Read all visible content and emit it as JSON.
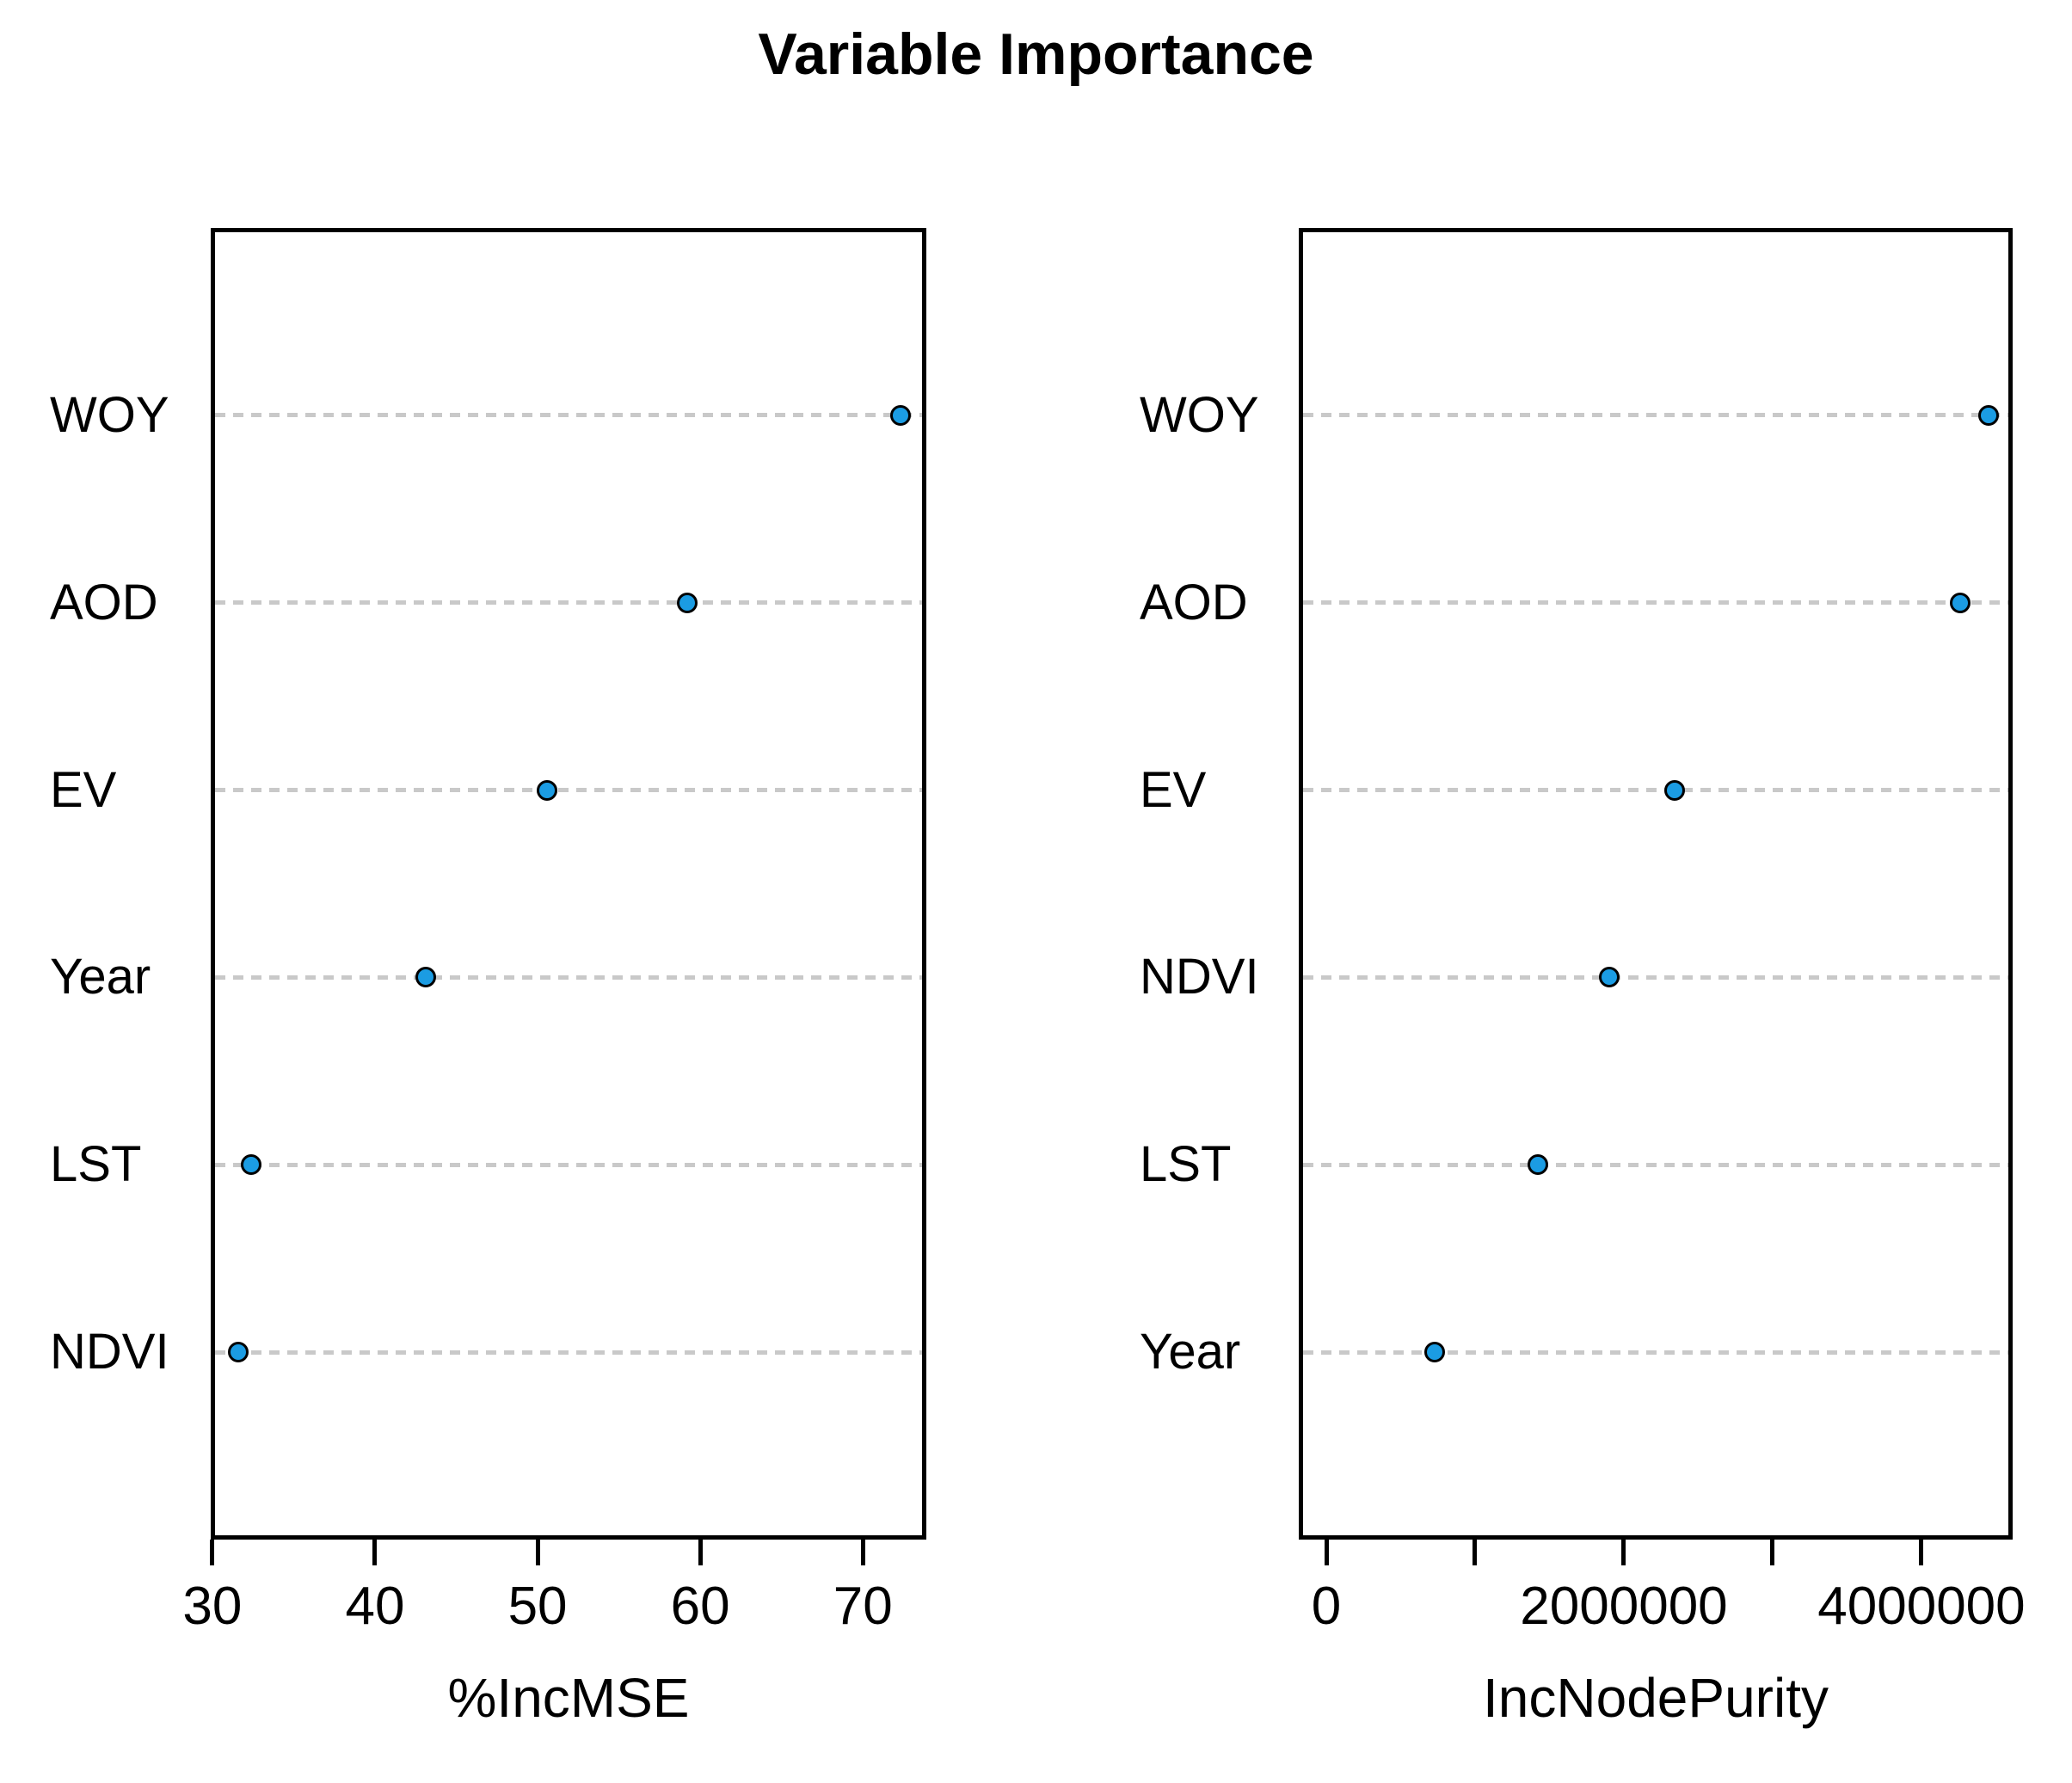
{
  "title": "Variable Importance",
  "colors": {
    "dot_fill": "#1b9ce3",
    "dot_stroke": "#000000",
    "gridline": "#c9c9c9",
    "box": "#000000",
    "text": "#000000",
    "background": "#ffffff"
  },
  "panels": [
    {
      "xlabel": "%IncMSE",
      "axis": {
        "min": 29.9,
        "max": 73.9,
        "ticks": [
          {
            "value": 30,
            "label": "30"
          },
          {
            "value": 40,
            "label": "40"
          },
          {
            "value": 50,
            "label": "50"
          },
          {
            "value": 60,
            "label": "60"
          },
          {
            "value": 70,
            "label": "70"
          }
        ]
      },
      "rows": [
        {
          "label": "WOY",
          "value": 72.3
        },
        {
          "label": "AOD",
          "value": 59.2
        },
        {
          "label": "EV",
          "value": 50.6
        },
        {
          "label": "Year",
          "value": 43.1
        },
        {
          "label": "LST",
          "value": 32.4
        },
        {
          "label": "NDVI",
          "value": 31.6
        }
      ]
    },
    {
      "xlabel": "IncNodePurity",
      "axis": {
        "min": -185000,
        "max": 4613000,
        "ticks": [
          {
            "value": 0,
            "label": "0"
          },
          {
            "value": 1000000,
            "label": ""
          },
          {
            "value": 2000000,
            "label": "2000000"
          },
          {
            "value": 3000000,
            "label": ""
          },
          {
            "value": 4000000,
            "label": "4000000"
          }
        ]
      },
      "rows": [
        {
          "label": "WOY",
          "value": 4450000
        },
        {
          "label": "AOD",
          "value": 4260000
        },
        {
          "label": "EV",
          "value": 2340000
        },
        {
          "label": "NDVI",
          "value": 1900000
        },
        {
          "label": "LST",
          "value": 1420000
        },
        {
          "label": "Year",
          "value": 730000
        }
      ]
    }
  ],
  "chart_data": [
    {
      "type": "scatter",
      "subtype": "dot-plot-horizontal",
      "title": "Variable Importance",
      "xlabel": "%IncMSE",
      "ylabel": "",
      "categories": [
        "WOY",
        "AOD",
        "EV",
        "Year",
        "LST",
        "NDVI"
      ],
      "values": [
        72.3,
        59.2,
        50.6,
        43.1,
        32.4,
        31.6
      ],
      "xlim": [
        29.9,
        73.9
      ],
      "xticks": [
        30,
        40,
        50,
        60,
        70
      ],
      "grid": "horizontal-dashed",
      "legend": "none",
      "marker": "filled-circle"
    },
    {
      "type": "scatter",
      "subtype": "dot-plot-horizontal",
      "title": "Variable Importance",
      "xlabel": "IncNodePurity",
      "ylabel": "",
      "categories": [
        "WOY",
        "AOD",
        "EV",
        "NDVI",
        "LST",
        "Year"
      ],
      "values": [
        4450000,
        4260000,
        2340000,
        1900000,
        1420000,
        730000
      ],
      "xlim": [
        -185000,
        4613000
      ],
      "xticks": [
        0,
        1000000,
        2000000,
        3000000,
        4000000
      ],
      "xtick_labels": [
        "0",
        "",
        "2000000",
        "",
        "4000000"
      ],
      "grid": "horizontal-dashed",
      "legend": "none",
      "marker": "filled-circle"
    }
  ]
}
